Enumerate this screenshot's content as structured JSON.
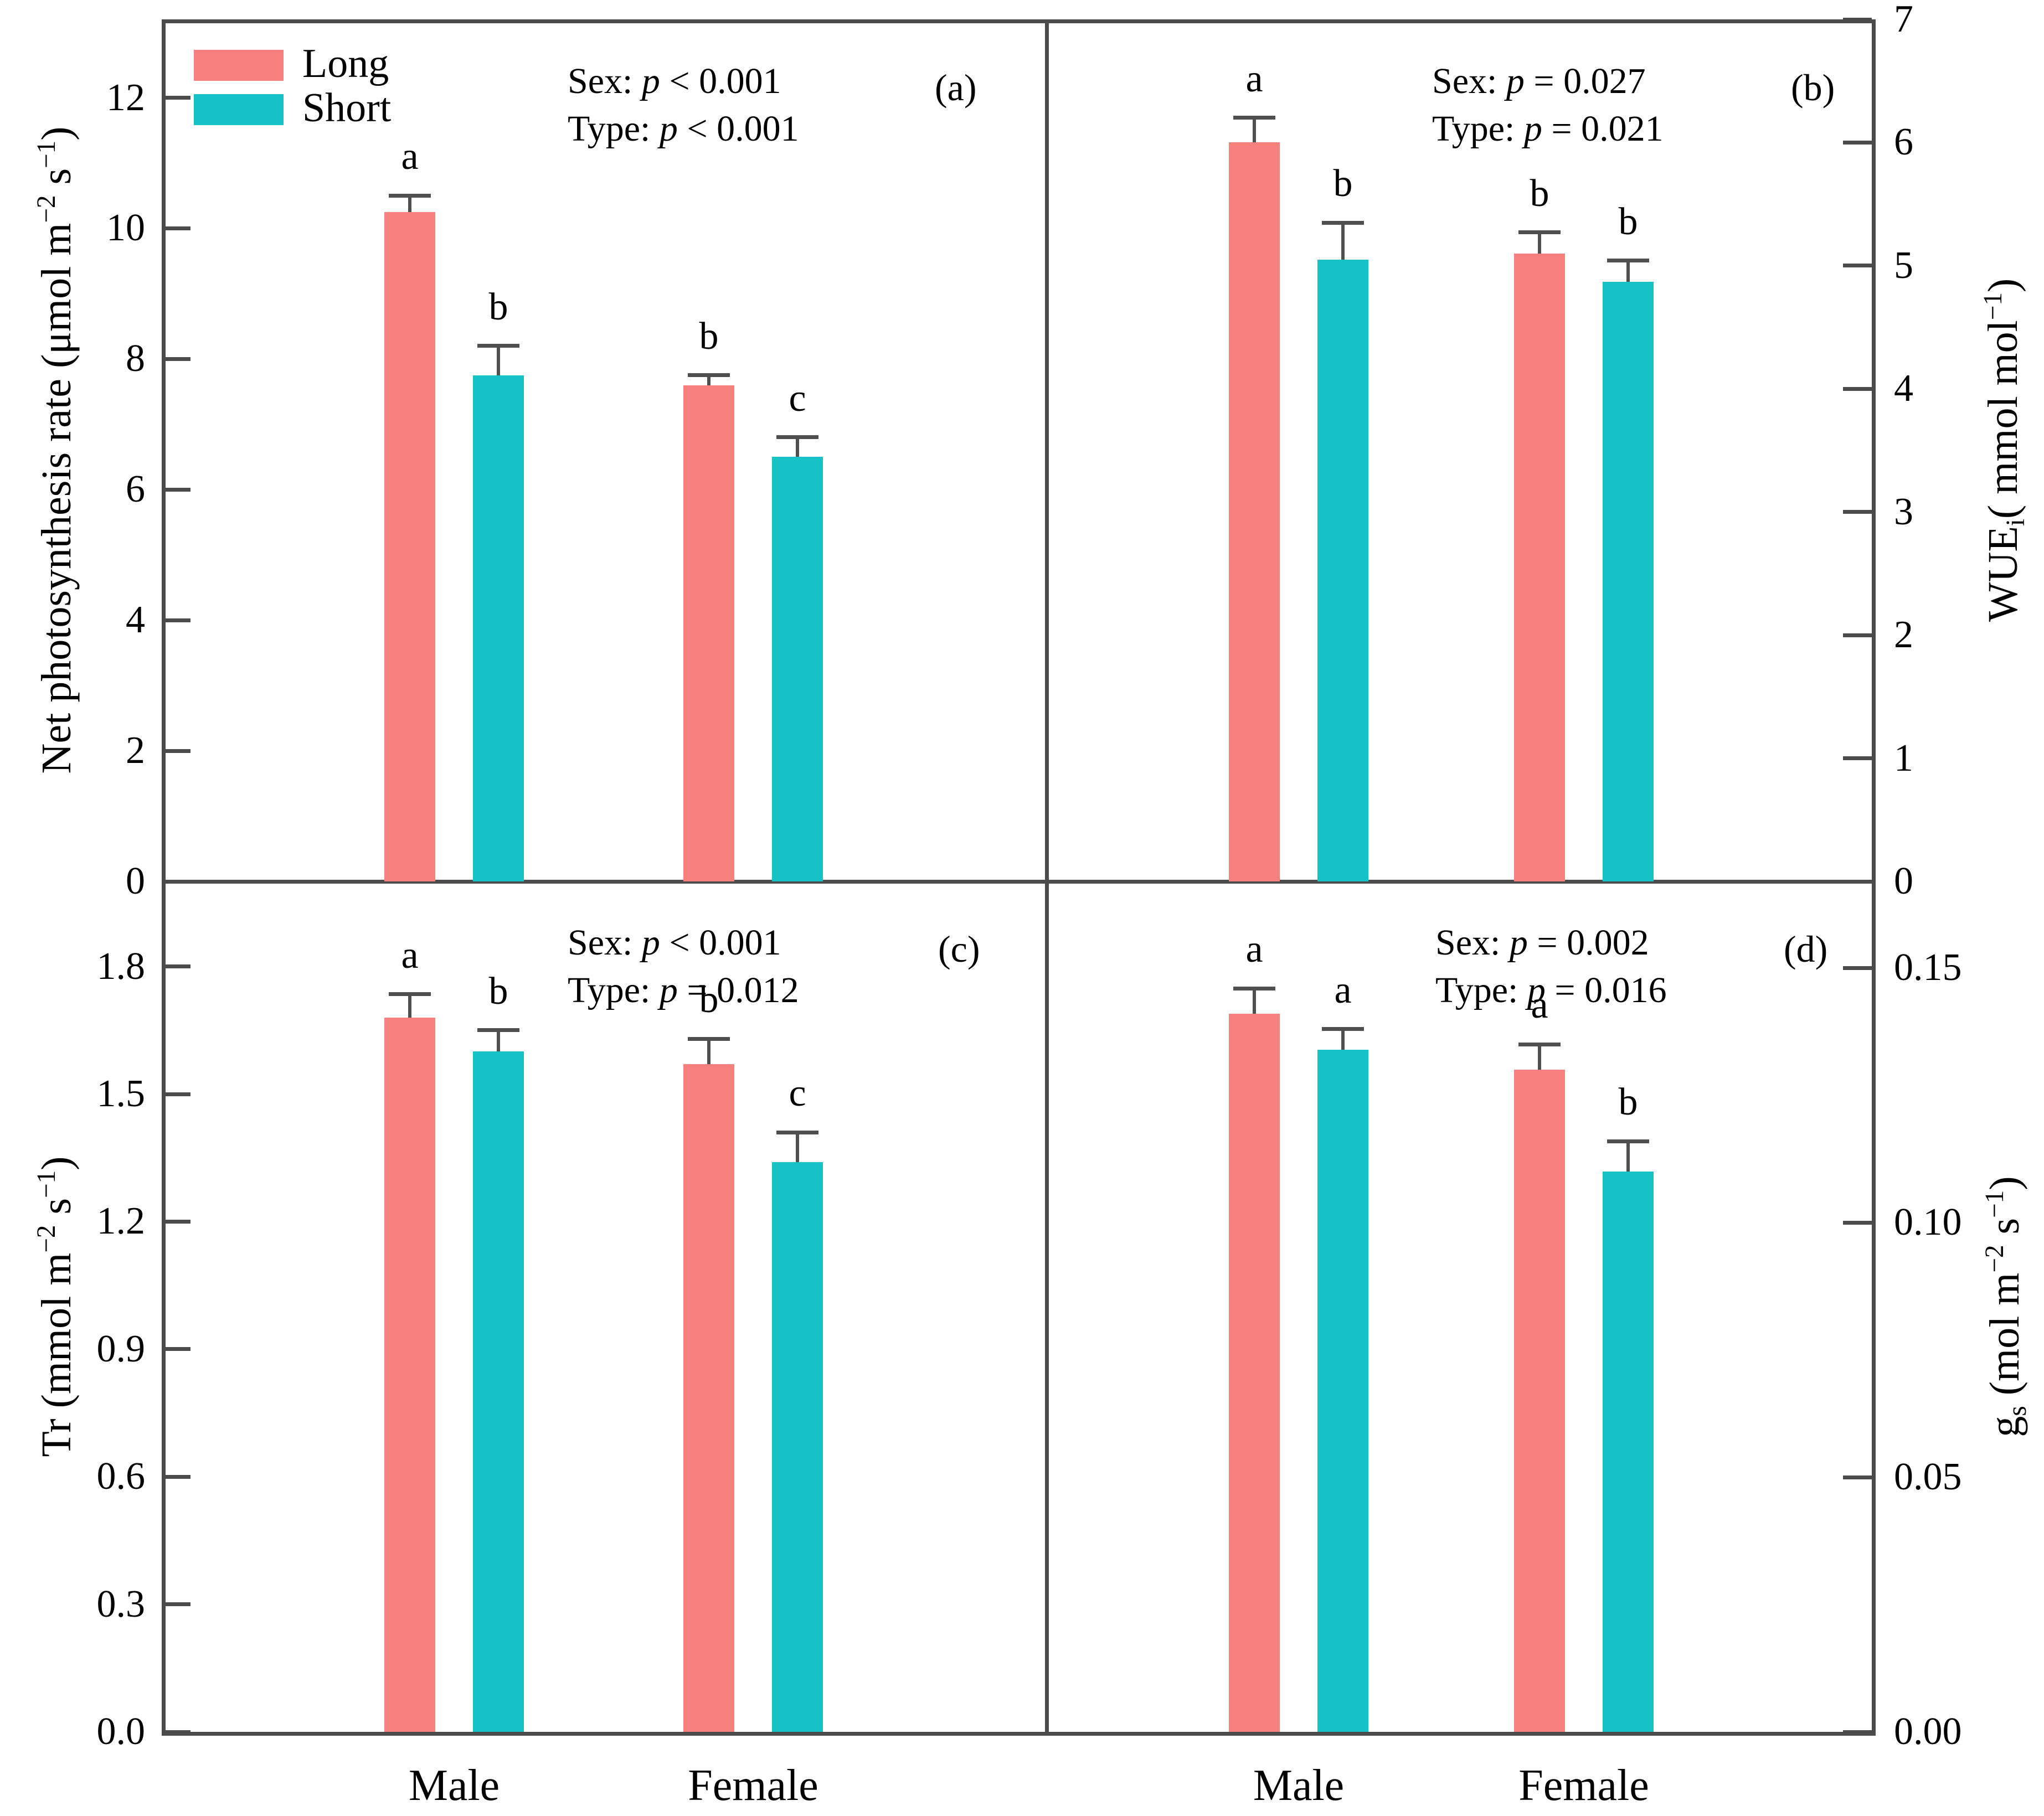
{
  "figure": {
    "background": "#ffffff",
    "axis_color": "#4b4b4b",
    "error_bar_color": "#4f4f4f",
    "p_symbol": "p"
  },
  "chart_data": {
    "type": "bar",
    "categories": [
      "Male",
      "Female"
    ],
    "legend": {
      "position": "top-left-inside-panel-a",
      "items": [
        {
          "name": "Long",
          "color": "#f5807d"
        },
        {
          "name": "Short",
          "color": "#16c2c6"
        }
      ]
    },
    "panels": [
      {
        "id": "a",
        "caption": "(a)",
        "axis_side": "left",
        "axis_label": [
          {
            "t": "Net photosynthesis rate (μmol m",
            "s": "n"
          },
          {
            "t": "−2",
            "s": "sup"
          },
          {
            "t": " s",
            "s": "n"
          },
          {
            "t": "−1",
            "s": "sup"
          },
          {
            "t": ")",
            "s": "n"
          }
        ],
        "ticks": [
          "0",
          "2",
          "4",
          "6",
          "8",
          "10",
          "12"
        ],
        "tick_values": [
          0,
          2,
          4,
          6,
          8,
          10,
          12
        ],
        "ylim": [
          0,
          13.2
        ],
        "grid": false,
        "stats": [
          [
            {
              "t": "Sex: ",
              "s": "n"
            },
            {
              "t": "p",
              "s": "i"
            },
            {
              "t": " < 0.001",
              "s": "n"
            }
          ],
          [
            {
              "t": "Type: ",
              "s": "n"
            },
            {
              "t": "p",
              "s": "i"
            },
            {
              "t": " < 0.001",
              "s": "n"
            }
          ]
        ],
        "series": [
          {
            "name": "Long",
            "values": [
              10.25,
              7.6
            ],
            "errors": [
              0.25,
              0.15
            ],
            "letters": [
              "a",
              "b"
            ]
          },
          {
            "name": "Short",
            "values": [
              7.75,
              6.5
            ],
            "errors": [
              0.45,
              0.3
            ],
            "letters": [
              "b",
              "c"
            ]
          }
        ]
      },
      {
        "id": "b",
        "caption": "(b)",
        "axis_side": "right",
        "axis_label": [
          {
            "t": "WUE",
            "s": "n"
          },
          {
            "t": "i",
            "s": "sub"
          },
          {
            "t": "( mmol mol",
            "s": "n"
          },
          {
            "t": "−1",
            "s": "sup"
          },
          {
            "t": ")",
            "s": "n"
          }
        ],
        "ticks": [
          "0",
          "1",
          "2",
          "3",
          "4",
          "5",
          "6",
          "7"
        ],
        "tick_values": [
          0,
          1,
          2,
          3,
          4,
          5,
          6,
          7
        ],
        "ylim": [
          0,
          7
        ],
        "grid": false,
        "stats": [
          [
            {
              "t": "Sex: ",
              "s": "n"
            },
            {
              "t": "p",
              "s": "i"
            },
            {
              "t": " = 0.027",
              "s": "n"
            }
          ],
          [
            {
              "t": "Type: ",
              "s": "n"
            },
            {
              "t": "p",
              "s": "i"
            },
            {
              "t": " = 0.021",
              "s": "n"
            }
          ]
        ],
        "series": [
          {
            "name": "Long",
            "values": [
              6.0,
              5.1
            ],
            "errors": [
              0.2,
              0.17
            ],
            "letters": [
              "a",
              "b"
            ]
          },
          {
            "name": "Short",
            "values": [
              5.05,
              4.87
            ],
            "errors": [
              0.3,
              0.17
            ],
            "letters": [
              "b",
              "b"
            ]
          }
        ]
      },
      {
        "id": "c",
        "caption": "(c)",
        "axis_side": "left",
        "axis_label": [
          {
            "t": "Tr (mmol m",
            "s": "n"
          },
          {
            "t": "−2",
            "s": "sup"
          },
          {
            "t": " s",
            "s": "n"
          },
          {
            "t": "−1",
            "s": "sup"
          },
          {
            "t": ")",
            "s": "n"
          }
        ],
        "ticks": [
          "0.0",
          "0.3",
          "0.6",
          "0.9",
          "1.2",
          "1.5",
          "1.8"
        ],
        "tick_values": [
          0,
          0.3,
          0.6,
          0.9,
          1.2,
          1.5,
          1.8
        ],
        "ylim": [
          0,
          2.0
        ],
        "grid": false,
        "stats": [
          [
            {
              "t": "Sex: ",
              "s": "n"
            },
            {
              "t": "p",
              "s": "i"
            },
            {
              "t": " < 0.001",
              "s": "n"
            }
          ],
          [
            {
              "t": "Type: ",
              "s": "n"
            },
            {
              "t": "p",
              "s": "i"
            },
            {
              "t": " = 0.012",
              "s": "n"
            }
          ]
        ],
        "series": [
          {
            "name": "Long",
            "values": [
              1.68,
              1.57
            ],
            "errors": [
              0.055,
              0.06
            ],
            "letters": [
              "a",
              "b"
            ]
          },
          {
            "name": "Short",
            "values": [
              1.6,
              1.34
            ],
            "errors": [
              0.05,
              0.07
            ],
            "letters": [
              "b",
              "c"
            ]
          }
        ]
      },
      {
        "id": "d",
        "caption": "(d)",
        "axis_side": "right",
        "axis_label": [
          {
            "t": "g",
            "s": "n"
          },
          {
            "t": "s",
            "s": "sub"
          },
          {
            "t": " (mol m",
            "s": "n"
          },
          {
            "t": "−2",
            "s": "sup"
          },
          {
            "t": " s",
            "s": "n"
          },
          {
            "t": "−1",
            "s": "sup"
          },
          {
            "t": ")",
            "s": "n"
          }
        ],
        "ticks": [
          "0.00",
          "0.05",
          "0.10",
          "0.15"
        ],
        "tick_values": [
          0,
          0.05,
          0.1,
          0.15
        ],
        "ylim": [
          0,
          0.167
        ],
        "grid": false,
        "stats": [
          [
            {
              "t": "Sex: ",
              "s": "n"
            },
            {
              "t": "p",
              "s": "i"
            },
            {
              "t": " = 0.002",
              "s": "n"
            }
          ],
          [
            {
              "t": "Type: ",
              "s": "n"
            },
            {
              "t": "p",
              "s": "i"
            },
            {
              "t": " = 0.016",
              "s": "n"
            }
          ]
        ],
        "series": [
          {
            "name": "Long",
            "values": [
              0.141,
              0.13
            ],
            "errors": [
              0.005,
              0.005
            ],
            "letters": [
              "a",
              "a"
            ]
          },
          {
            "name": "Short",
            "values": [
              0.134,
              0.11
            ],
            "errors": [
              0.004,
              0.006
            ],
            "letters": [
              "a",
              "b"
            ]
          }
        ]
      }
    ]
  }
}
